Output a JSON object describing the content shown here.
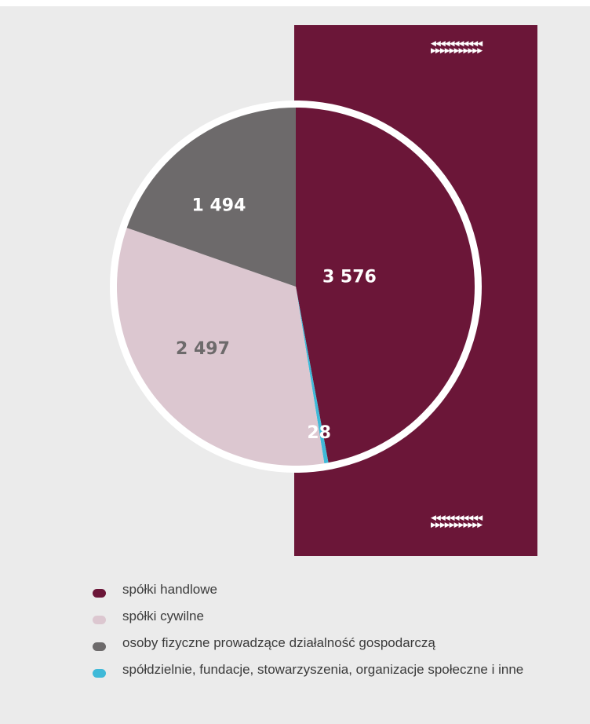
{
  "colors": {
    "background": "#ebebeb",
    "maroon": "#6b1638",
    "pink": "#dcc7d0",
    "gray": "#6d6a6b",
    "cyan": "#3fb9d8",
    "ring": "#ffffff"
  },
  "decorations": {
    "arrows": "◀◀◀◀◀◀◀◀◀◀◀"
  },
  "chart_data": {
    "type": "pie",
    "slices": [
      {
        "label": "spółki handlowe",
        "value": 3576,
        "display": "3 576",
        "color": "#6b1638",
        "label_color": "#ffffff"
      },
      {
        "label": "spółdzielnie, fundacje, stowarzyszenia, organizacje społeczne i inne",
        "value": 28,
        "display": "28",
        "color": "#3fb9d8",
        "label_color": "#ffffff"
      },
      {
        "label": "spółki cywilne",
        "value": 2497,
        "display": "2 497",
        "color": "#dcc7d0",
        "label_color": "#6d6a6b"
      },
      {
        "label": "osoby fizyczne prowadzące działalność gospodarczą",
        "value": 1494,
        "display": "1 494",
        "color": "#6d6a6b",
        "label_color": "#ffffff"
      }
    ],
    "start_angle_deg": 0,
    "direction": "clockwise",
    "legend_position": "bottom"
  },
  "legend": {
    "items": [
      {
        "label": "spółki handlowe",
        "color": "#6b1638"
      },
      {
        "label": "spółki cywilne",
        "color": "#dcc7d0"
      },
      {
        "label": "osoby fizyczne prowadzące działalność gospodarczą",
        "color": "#6d6a6b"
      },
      {
        "label": "spółdzielnie, fundacje, stowarzyszenia, organizacje społeczne i inne",
        "color": "#3fb9d8"
      }
    ]
  }
}
